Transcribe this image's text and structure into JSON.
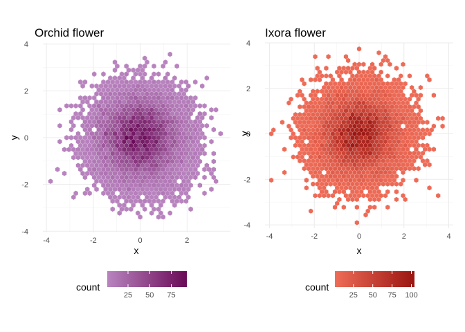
{
  "chart_data": [
    {
      "type": "hexbin",
      "title": "Orchid flower",
      "xlabel": "x",
      "ylabel": "y",
      "xlim": [
        -4.15,
        3.85
      ],
      "ylim": [
        -4.05,
        4.05
      ],
      "xticks": [
        -4,
        -2,
        0,
        2
      ],
      "yticks": [
        -4,
        -2,
        0,
        2,
        4
      ],
      "grid": true,
      "legend": {
        "title": "count",
        "position": "bottom",
        "ticks": [
          25,
          50,
          75
        ],
        "range": [
          1,
          93
        ],
        "colors": {
          "low": "#b884bf",
          "high": "#6a0a57"
        }
      },
      "distribution": {
        "center": [
          0,
          0
        ],
        "spread": 1.0,
        "max_count": 93,
        "point_count": 10000
      }
    },
    {
      "type": "hexbin",
      "title": "Ixora flower",
      "xlabel": "x",
      "ylabel": "y",
      "xlim": [
        -4.2,
        4.2
      ],
      "ylim": [
        -4.15,
        4.0
      ],
      "xticks": [
        -4,
        -2,
        0,
        2,
        4
      ],
      "yticks": [
        -4,
        -2,
        0,
        2,
        4
      ],
      "grid": true,
      "legend": {
        "title": "count",
        "position": "bottom",
        "ticks": [
          25,
          50,
          75,
          100
        ],
        "range": [
          1,
          104
        ],
        "colors": {
          "low": "#ee6c57",
          "high": "#9b1511"
        }
      },
      "distribution": {
        "center": [
          0,
          0
        ],
        "spread": 1.0,
        "max_count": 104,
        "point_count": 10000
      }
    }
  ]
}
